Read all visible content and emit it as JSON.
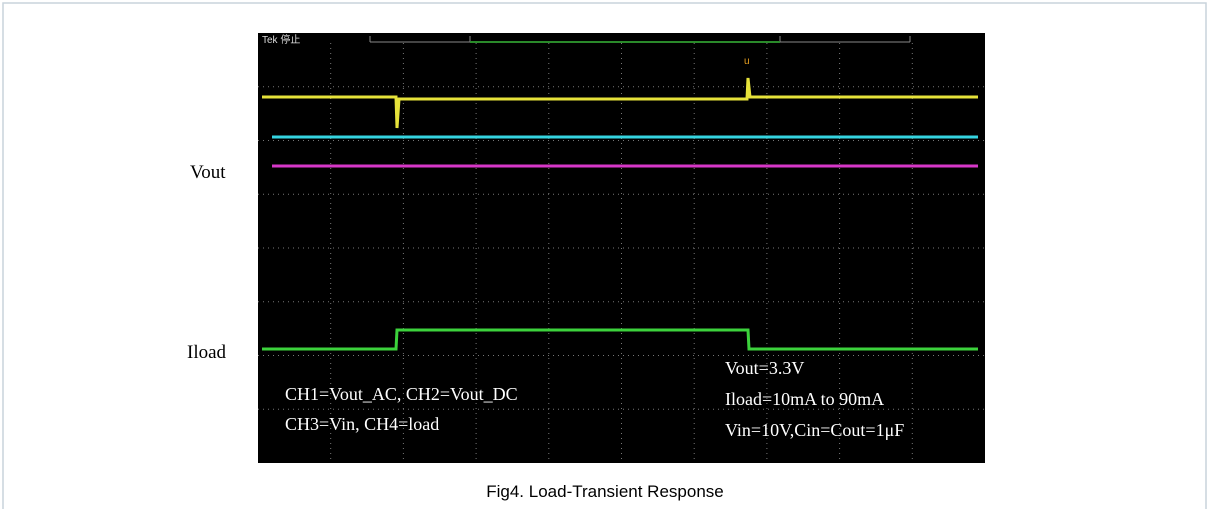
{
  "figure": {
    "scope_header": "Tek 停止",
    "trigger_marker": "u",
    "labels": {
      "vout": "Vout",
      "iload": "Iload"
    },
    "channels": [
      "CH1=Vout_AC, CH2=Vout_DC",
      "CH3=Vin, CH4=load"
    ],
    "conditions": [
      "Vout=3.3V",
      "Iload=10mA to 90mA",
      "Vin=10V,Cin=Cout=1μF"
    ],
    "caption": "Fig4. Load-Transient Response"
  }
}
